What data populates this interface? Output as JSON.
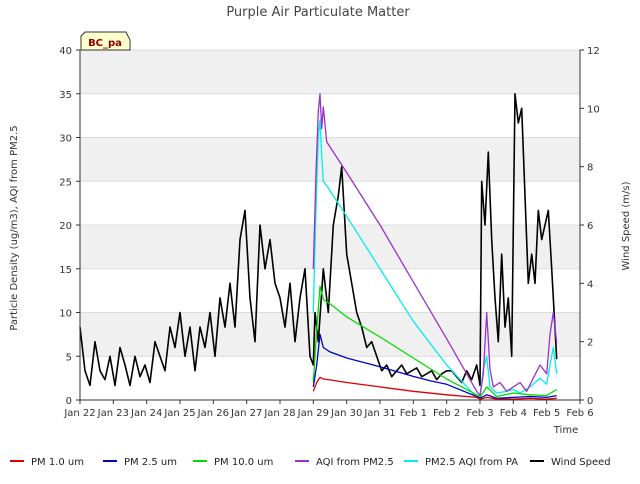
{
  "chart_data": {
    "type": "line",
    "title": "Purple Air Particulate Matter",
    "xlabel": "Time",
    "ylabel": "Particle Density (ug/m3), AQI from PM2.5",
    "y2label": "Wind Speed (m/s)",
    "site_badge": "BC_pa",
    "ylim": [
      0,
      40
    ],
    "y2lim": [
      0,
      12
    ],
    "xlim": [
      0,
      15
    ],
    "x_unit": "days since Jan 22",
    "y_ticks": [
      0,
      5,
      10,
      15,
      20,
      25,
      30,
      35,
      40
    ],
    "y2_ticks": [
      0,
      2,
      4,
      6,
      8,
      10,
      12
    ],
    "x_ticks": [
      {
        "value": 0,
        "label": "Jan 22"
      },
      {
        "value": 1,
        "label": "Jan 23"
      },
      {
        "value": 2,
        "label": "Jan 24"
      },
      {
        "value": 3,
        "label": "Jan 25"
      },
      {
        "value": 4,
        "label": "Jan 26"
      },
      {
        "value": 5,
        "label": "Jan 27"
      },
      {
        "value": 6,
        "label": "Jan 28"
      },
      {
        "value": 7,
        "label": "Jan 29"
      },
      {
        "value": 8,
        "label": "Jan 30"
      },
      {
        "value": 9,
        "label": "Jan 31"
      },
      {
        "value": 10,
        "label": "Feb 1"
      },
      {
        "value": 11,
        "label": "Feb 2"
      },
      {
        "value": 12,
        "label": "Feb 3"
      },
      {
        "value": 13,
        "label": "Feb 4"
      },
      {
        "value": 14,
        "label": "Feb 5"
      },
      {
        "value": 15,
        "label": "Feb 6"
      }
    ],
    "legend_position": "bottom",
    "series": [
      {
        "name": "PM 1.0 um",
        "color": "#dd0000",
        "axis": "left",
        "x": [
          7.0,
          7.1,
          7.2,
          7.3,
          7.5,
          8.0,
          9.0,
          10.0,
          11.0,
          11.9,
          12.0,
          12.2,
          12.5,
          13.0,
          13.5,
          14.0,
          14.3
        ],
        "y": [
          1.0,
          2.0,
          2.6,
          2.4,
          2.3,
          2.0,
          1.5,
          1.0,
          0.6,
          0.3,
          0.1,
          0.3,
          0.1,
          0.1,
          0.2,
          0.1,
          0.2
        ]
      },
      {
        "name": "PM 2.5 um",
        "color": "#0000cc",
        "axis": "left",
        "x": [
          7.0,
          7.1,
          7.2,
          7.3,
          7.5,
          8.0,
          9.0,
          10.0,
          10.5,
          11.0,
          11.9,
          12.0,
          12.2,
          12.5,
          13.0,
          13.5,
          14.0,
          14.3
        ],
        "y": [
          1.5,
          4.0,
          7.5,
          6.0,
          5.5,
          4.8,
          3.8,
          2.7,
          2.2,
          1.8,
          0.4,
          0.2,
          0.6,
          0.2,
          0.3,
          0.4,
          0.3,
          0.5
        ]
      },
      {
        "name": "PM 10.0 um",
        "color": "#00dd00",
        "axis": "left",
        "x": [
          7.0,
          7.1,
          7.2,
          7.3,
          7.5,
          8.0,
          9.0,
          10.0,
          10.5,
          11.0,
          11.9,
          12.0,
          12.2,
          12.5,
          13.0,
          13.5,
          14.0,
          14.3
        ],
        "y": [
          2.0,
          8.0,
          13.0,
          11.5,
          11.0,
          9.5,
          7.2,
          4.8,
          3.6,
          2.4,
          0.6,
          0.3,
          1.5,
          0.4,
          0.8,
          0.6,
          0.5,
          1.2
        ]
      },
      {
        "name": "AQI from PM2.5",
        "color": "#9932cc",
        "axis": "left",
        "x": [
          7.0,
          7.08,
          7.15,
          7.2,
          7.25,
          7.3,
          7.4,
          8.0,
          9.0,
          10.0,
          11.0,
          11.9,
          12.0,
          12.1,
          12.2,
          12.3,
          12.4,
          12.6,
          12.8,
          13.0,
          13.2,
          13.4,
          13.6,
          13.8,
          14.0,
          14.1,
          14.2,
          14.3
        ],
        "y": [
          15.0,
          26.0,
          33.0,
          35.0,
          31.0,
          33.5,
          29.5,
          26.0,
          20.0,
          13.5,
          7.0,
          1.0,
          0.5,
          3.0,
          10.0,
          3.5,
          1.5,
          2.0,
          1.0,
          1.5,
          2.0,
          1.0,
          2.5,
          4.0,
          3.0,
          7.5,
          10.0,
          6.5
        ]
      },
      {
        "name": "PM2.5 AQI from PA",
        "color": "#00eeee",
        "axis": "left",
        "x": [
          7.0,
          7.08,
          7.15,
          7.2,
          7.25,
          7.3,
          7.4,
          8.0,
          9.0,
          10.0,
          11.0,
          11.9,
          12.0,
          12.1,
          12.2,
          12.3,
          12.5,
          12.8,
          13.0,
          13.2,
          13.5,
          13.8,
          14.0,
          14.1,
          14.2,
          14.3
        ],
        "y": [
          10.0,
          22.0,
          30.0,
          32.0,
          28.0,
          25.0,
          24.5,
          21.0,
          15.0,
          9.0,
          4.0,
          0.3,
          0.5,
          3.5,
          5.0,
          1.5,
          0.8,
          1.0,
          1.2,
          0.8,
          1.5,
          2.5,
          1.8,
          4.0,
          6.0,
          3.0
        ]
      },
      {
        "name": "Wind Speed",
        "color": "#000000",
        "axis": "right",
        "x": [
          0.0,
          0.15,
          0.3,
          0.45,
          0.6,
          0.75,
          0.9,
          1.05,
          1.2,
          1.35,
          1.5,
          1.65,
          1.8,
          1.95,
          2.1,
          2.25,
          2.4,
          2.55,
          2.7,
          2.85,
          3.0,
          3.15,
          3.3,
          3.45,
          3.6,
          3.75,
          3.9,
          4.05,
          4.2,
          4.35,
          4.5,
          4.65,
          4.8,
          4.95,
          5.1,
          5.25,
          5.4,
          5.55,
          5.7,
          5.85,
          6.0,
          6.15,
          6.3,
          6.45,
          6.6,
          6.75,
          6.9,
          7.0,
          7.05,
          7.15,
          7.3,
          7.45,
          7.6,
          7.75,
          7.85,
          8.0,
          8.15,
          8.3,
          8.45,
          8.6,
          8.75,
          8.9,
          9.05,
          9.2,
          9.35,
          9.5,
          9.65,
          9.8,
          9.95,
          10.1,
          10.25,
          10.4,
          10.55,
          10.7,
          10.85,
          11.0,
          11.15,
          11.3,
          11.45,
          11.6,
          11.75,
          11.9,
          12.0,
          12.05,
          12.15,
          12.25,
          12.35,
          12.45,
          12.55,
          12.65,
          12.75,
          12.85,
          12.95,
          13.05,
          13.15,
          13.25,
          13.35,
          13.45,
          13.55,
          13.65,
          13.75,
          13.85,
          13.95,
          14.05,
          14.15,
          14.3
        ],
        "y": [
          2.5,
          1.0,
          0.5,
          2.0,
          1.0,
          0.7,
          1.5,
          0.5,
          1.8,
          1.2,
          0.5,
          1.5,
          0.8,
          1.2,
          0.6,
          2.0,
          1.5,
          1.0,
          2.5,
          1.8,
          3.0,
          1.5,
          2.5,
          1.0,
          2.5,
          1.8,
          3.0,
          1.5,
          3.5,
          2.5,
          4.0,
          2.5,
          5.5,
          6.5,
          3.5,
          2.0,
          6.0,
          4.5,
          5.5,
          4.0,
          3.5,
          2.5,
          4.0,
          2.0,
          3.5,
          4.5,
          1.5,
          1.2,
          3.0,
          2.0,
          4.5,
          3.0,
          6.0,
          7.0,
          8.0,
          5.0,
          4.0,
          3.0,
          2.5,
          1.8,
          2.0,
          1.5,
          1.0,
          1.2,
          0.8,
          1.0,
          1.2,
          0.9,
          1.0,
          1.1,
          0.8,
          0.9,
          1.0,
          0.7,
          0.9,
          1.0,
          1.0,
          0.8,
          0.6,
          1.0,
          0.7,
          1.2,
          0.5,
          7.5,
          6.0,
          8.5,
          5.5,
          3.5,
          2.0,
          5.0,
          2.5,
          3.5,
          1.5,
          10.5,
          9.5,
          10.0,
          7.0,
          4.0,
          5.0,
          4.0,
          6.5,
          5.5,
          6.0,
          6.5,
          4.5,
          1.4
        ]
      }
    ]
  }
}
